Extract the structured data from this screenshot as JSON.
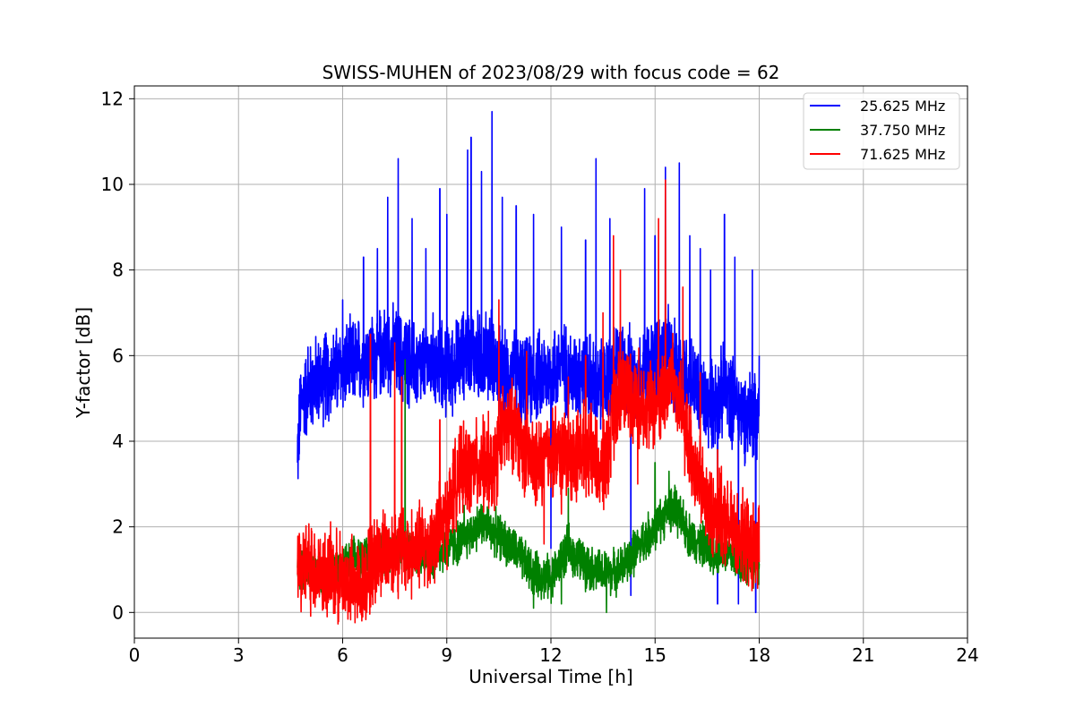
{
  "chart_data": {
    "type": "line",
    "title": "SWISS-MUHEN of 2023/08/29 with focus code = 62",
    "xlabel": "Universal Time [h]",
    "ylabel": "Y-factor [dB]",
    "xlim": [
      0,
      24
    ],
    "ylim": [
      -0.6,
      12.3
    ],
    "xticks": [
      0,
      3,
      6,
      9,
      12,
      15,
      18,
      21,
      24
    ],
    "yticks": [
      0,
      2,
      4,
      6,
      8,
      10,
      12
    ],
    "grid": true,
    "legend_position": "top-right",
    "series": [
      {
        "name": "25.625 MHz",
        "color": "#0000ff",
        "x": [
          4.7,
          4.8,
          5.0,
          5.2,
          5.5,
          5.8,
          6.0,
          6.3,
          6.6,
          7.0,
          7.3,
          7.6,
          8.0,
          8.3,
          8.6,
          9.0,
          9.3,
          9.6,
          10.0,
          10.3,
          10.6,
          11.0,
          11.3,
          11.6,
          12.0,
          12.3,
          12.6,
          13.0,
          13.3,
          13.6,
          14.0,
          14.3,
          14.6,
          15.0,
          15.3,
          15.6,
          16.0,
          16.3,
          16.6,
          17.0,
          17.3,
          17.6,
          18.0
        ],
        "y": [
          3.7,
          4.9,
          5.2,
          5.4,
          5.5,
          5.6,
          5.7,
          5.8,
          5.9,
          6.0,
          6.2,
          6.0,
          5.8,
          5.7,
          5.9,
          5.6,
          5.8,
          6.2,
          5.9,
          6.1,
          5.4,
          5.6,
          5.3,
          5.5,
          5.6,
          5.8,
          5.5,
          5.7,
          5.2,
          5.4,
          5.8,
          5.6,
          5.5,
          5.9,
          6.1,
          5.7,
          5.5,
          5.0,
          4.8,
          5.2,
          4.9,
          4.6,
          4.8
        ],
        "peaks": [
          [
            5.0,
            6.2
          ],
          [
            5.5,
            6.5
          ],
          [
            6.0,
            7.3
          ],
          [
            6.6,
            8.3
          ],
          [
            7.0,
            8.5
          ],
          [
            7.3,
            9.7
          ],
          [
            7.6,
            10.6
          ],
          [
            8.0,
            9.2
          ],
          [
            8.4,
            8.5
          ],
          [
            8.8,
            9.9
          ],
          [
            9.0,
            9.3
          ],
          [
            9.6,
            10.8
          ],
          [
            9.7,
            11.1
          ],
          [
            10.0,
            10.3
          ],
          [
            10.3,
            11.7
          ],
          [
            10.6,
            9.7
          ],
          [
            11.0,
            9.5
          ],
          [
            11.5,
            9.3
          ],
          [
            12.0,
            10.2
          ],
          [
            12.3,
            9.0
          ],
          [
            13.0,
            8.7
          ],
          [
            13.3,
            10.6
          ],
          [
            13.7,
            9.2
          ],
          [
            14.3,
            8.0
          ],
          [
            14.7,
            9.9
          ],
          [
            15.0,
            8.8
          ],
          [
            15.3,
            10.4
          ],
          [
            15.7,
            10.5
          ],
          [
            16.0,
            8.8
          ],
          [
            16.3,
            8.5
          ],
          [
            16.6,
            8.0
          ],
          [
            17.0,
            9.3
          ],
          [
            17.3,
            8.3
          ],
          [
            17.8,
            8.0
          ],
          [
            18.0,
            6.0
          ]
        ],
        "dips": [
          [
            4.7,
            3.5
          ],
          [
            12.0,
            1.5
          ],
          [
            14.3,
            0.4
          ],
          [
            16.8,
            0.2
          ],
          [
            17.4,
            0.2
          ],
          [
            17.9,
            0.0
          ]
        ]
      },
      {
        "name": "37.750 MHz",
        "color": "#008000",
        "x": [
          4.7,
          5.0,
          5.5,
          6.0,
          6.5,
          7.0,
          7.5,
          8.0,
          8.5,
          9.0,
          9.5,
          10.0,
          10.5,
          11.0,
          11.5,
          12.0,
          12.5,
          13.0,
          13.5,
          14.0,
          14.5,
          15.0,
          15.5,
          16.0,
          16.5,
          17.0,
          17.5,
          18.0
        ],
        "y": [
          1.0,
          1.0,
          0.9,
          1.0,
          1.3,
          1.4,
          1.5,
          1.4,
          1.3,
          1.5,
          1.7,
          2.1,
          1.8,
          1.4,
          0.9,
          0.8,
          1.5,
          1.1,
          0.9,
          1.0,
          1.5,
          2.0,
          2.5,
          1.8,
          1.5,
          1.4,
          1.2,
          1.1
        ],
        "peaks": [
          [
            7.8,
            5.9
          ],
          [
            9.5,
            2.5
          ],
          [
            12.5,
            2.9
          ],
          [
            15.0,
            3.5
          ],
          [
            15.4,
            3.3
          ]
        ],
        "dips": [
          [
            11.5,
            0.1
          ],
          [
            12.3,
            0.2
          ],
          [
            13.6,
            0.0
          ]
        ]
      },
      {
        "name": "71.625 MHz",
        "color": "#ff0000",
        "x": [
          4.7,
          5.0,
          5.5,
          6.0,
          6.5,
          7.0,
          7.5,
          8.0,
          8.5,
          9.0,
          9.3,
          9.6,
          10.0,
          10.3,
          10.6,
          11.0,
          11.3,
          11.6,
          12.0,
          12.5,
          13.0,
          13.5,
          14.0,
          14.5,
          15.0,
          15.5,
          16.0,
          16.5,
          17.0,
          17.5,
          18.0
        ],
        "y": [
          1.0,
          1.1,
          0.9,
          0.8,
          0.6,
          1.3,
          1.5,
          1.4,
          1.6,
          2.2,
          3.2,
          3.3,
          3.5,
          3.2,
          4.2,
          4.4,
          3.6,
          3.4,
          3.8,
          3.6,
          3.9,
          3.2,
          5.3,
          5.0,
          4.8,
          5.5,
          3.8,
          2.5,
          2.1,
          1.7,
          1.4
        ],
        "peaks": [
          [
            6.8,
            6.5
          ],
          [
            7.5,
            6.3
          ],
          [
            7.7,
            5.5
          ],
          [
            8.8,
            4.5
          ],
          [
            9.2,
            3.8
          ],
          [
            10.2,
            4.7
          ],
          [
            10.5,
            7.3
          ],
          [
            11.3,
            6.1
          ],
          [
            12.5,
            5.5
          ],
          [
            13.0,
            6.0
          ],
          [
            13.5,
            7.0
          ],
          [
            13.8,
            8.8
          ],
          [
            14.0,
            8.0
          ],
          [
            14.5,
            7.7
          ],
          [
            15.1,
            9.2
          ],
          [
            15.3,
            10.1
          ],
          [
            15.8,
            7.6
          ],
          [
            16.3,
            5.6
          ],
          [
            16.8,
            3.8
          ]
        ],
        "dips": [
          [
            6.5,
            0.0
          ],
          [
            11.8,
            1.6
          ],
          [
            12.3,
            2.3
          ],
          [
            14.5,
            3.0
          ],
          [
            17.8,
            0.8
          ]
        ]
      }
    ]
  }
}
